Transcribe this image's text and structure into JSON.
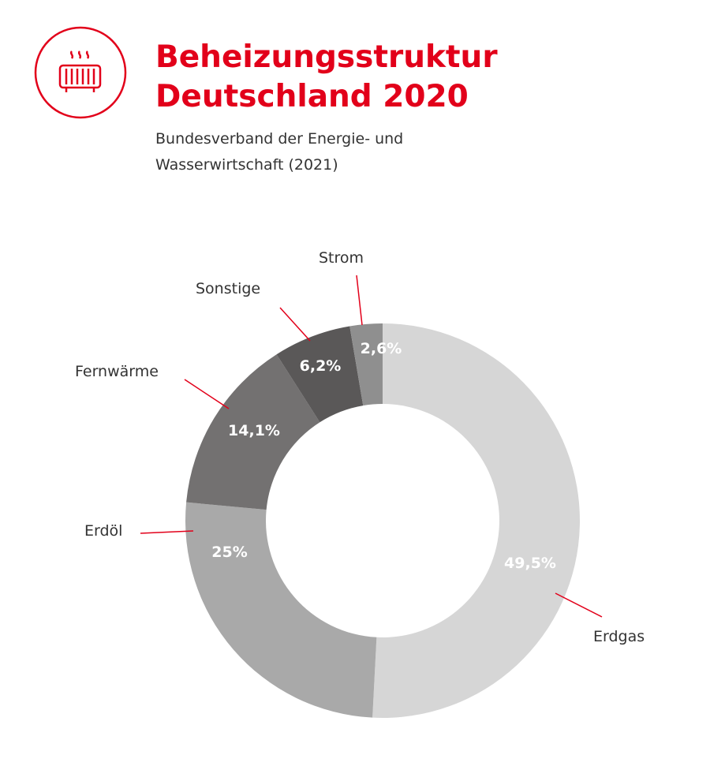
{
  "header": {
    "title_line1": "Beheizungsstruktur",
    "title_line2": "Deutschland 2020",
    "source_line1": "Bundesverband der Energie- und",
    "source_line2": "Wasserwirtschaft (2021)",
    "icon": "radiator-icon",
    "accent": "#e2001a"
  },
  "chart_data": {
    "type": "pie",
    "variant": "donut",
    "title": "Beheizungsstruktur Deutschland 2020",
    "categories": [
      "Erdgas",
      "Erdöl",
      "Fernwärme",
      "Sonstige",
      "Strom"
    ],
    "values": [
      49.5,
      25,
      14.1,
      6.2,
      2.6
    ],
    "value_labels": [
      "49,5%",
      "25%",
      "14,1%",
      "6,2%",
      "2,6%"
    ],
    "colors": [
      "#d6d6d6",
      "#a9a9a9",
      "#737171",
      "#5a5858",
      "#8f8f8f"
    ],
    "unit": "%"
  }
}
